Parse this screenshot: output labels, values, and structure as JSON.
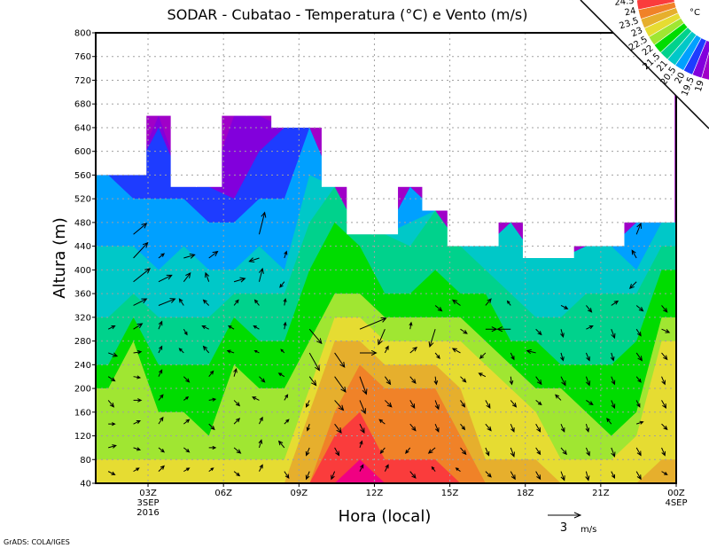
{
  "chart_data": {
    "type": "heatmap",
    "subtype": "filled-contour-with-wind-vectors",
    "title": "SODAR - Cubatao - Temperatura (°C) e Vento (m/s)",
    "xlabel": "Hora (local)",
    "ylabel": "Altura (m)",
    "xlim_hours": [
      0.92,
      24
    ],
    "ylim": [
      40,
      800
    ],
    "yticks": [
      40,
      80,
      120,
      160,
      200,
      240,
      280,
      320,
      360,
      400,
      440,
      480,
      520,
      560,
      600,
      640,
      680,
      720,
      760,
      800
    ],
    "xticks": [
      {
        "hour": 3,
        "label": "03Z",
        "date": "3SEP",
        "year": "2016"
      },
      {
        "hour": 6,
        "label": "06Z"
      },
      {
        "hour": 9,
        "label": "09Z"
      },
      {
        "hour": 12,
        "label": "12Z"
      },
      {
        "hour": 15,
        "label": "15Z"
      },
      {
        "hour": 18,
        "label": "18Z"
      },
      {
        "hour": 21,
        "label": "21Z"
      },
      {
        "hour": 24,
        "label": "00Z",
        "date": "4SEP"
      }
    ],
    "grid": true,
    "colorbar": {
      "unit": "°C",
      "levels": [
        19,
        19.5,
        20,
        20.5,
        21,
        21.5,
        22,
        22.5,
        23,
        23.5,
        24,
        24.5
      ],
      "level_labels": [
        "19",
        "19.5",
        "20",
        "20.5",
        "21",
        "21.5",
        "22",
        "22.5",
        "23",
        "23.5",
        "24",
        "24.5"
      ],
      "colors": [
        "#a000c8",
        "#8200dc",
        "#1e3cff",
        "#00a0ff",
        "#00c8c8",
        "#00d28c",
        "#00dc00",
        "#a0e632",
        "#e6dc32",
        "#e6af2d",
        "#f08228",
        "#fa3c3c",
        "#f00082"
      ],
      "placement": "top-right"
    },
    "profile_start_hour": 0.92,
    "profile_step_hours": 1,
    "profile_base_height_m": 60,
    "profile_step_m": 40,
    "ceiling_m": [
      560,
      560,
      660,
      540,
      540,
      660,
      660,
      640,
      640,
      540,
      460,
      460,
      540,
      500,
      440,
      440,
      480,
      420,
      420,
      440,
      440,
      480,
      480
    ],
    "temperature_profiles": [
      [
        22.75,
        22.25,
        22.25,
        22.25,
        21.75,
        21.25,
        21.25,
        20.75,
        20.75,
        20.75,
        20.25,
        20.25,
        20.25
      ],
      [
        22.75,
        22.25,
        22.25,
        22.25,
        22.25,
        22.25,
        21.75,
        21.25,
        20.75,
        20.75,
        20.25,
        20.25,
        19.75
      ],
      [
        22.75,
        22.25,
        22.25,
        21.75,
        21.75,
        21.25,
        21.25,
        20.75,
        20.75,
        20.25,
        20.25,
        20.25,
        19.75,
        19.75,
        19.75,
        19.25
      ],
      [
        22.75,
        22.25,
        22.25,
        21.75,
        21.75,
        21.25,
        21.25,
        20.75,
        20.75,
        20.75,
        20.25,
        20.25,
        19.75
      ],
      [
        22.75,
        22.25,
        21.75,
        21.75,
        21.75,
        21.25,
        21.25,
        20.75,
        20.75,
        20.25,
        20.25,
        19.75,
        19.75
      ],
      [
        22.75,
        22.25,
        22.25,
        22.25,
        22.25,
        21.75,
        21.75,
        21.25,
        20.75,
        20.25,
        20.25,
        19.75,
        19.25,
        19.25,
        19.25,
        19.25
      ],
      [
        22.75,
        22.25,
        22.25,
        22.25,
        21.75,
        21.75,
        21.25,
        21.25,
        20.75,
        20.75,
        20.25,
        20.25,
        19.75,
        19.75,
        19.25,
        19.25
      ],
      [
        22.75,
        22.25,
        22.25,
        22.25,
        21.75,
        21.75,
        21.25,
        21.25,
        20.75,
        20.25,
        20.25,
        20.25,
        19.75,
        19.75,
        19.75
      ],
      [
        23.25,
        23.25,
        23.25,
        22.75,
        22.25,
        22.25,
        21.75,
        21.75,
        21.75,
        21.25,
        21.25,
        20.75,
        20.75,
        20.25,
        20.25
      ],
      [
        24.25,
        24.25,
        23.75,
        23.25,
        23.25,
        23.25,
        22.75,
        22.25,
        21.75,
        21.75,
        21.75,
        21.25,
        21.25
      ],
      [
        24.75,
        24.25,
        24.25,
        23.75,
        23.75,
        23.25,
        22.75,
        22.25,
        21.75,
        21.75,
        21.25
      ],
      [
        24.25,
        23.75,
        23.75,
        23.75,
        23.25,
        22.75,
        22.25,
        21.75,
        21.25,
        21.25,
        21.25
      ],
      [
        24.25,
        23.75,
        23.75,
        23.75,
        23.25,
        22.75,
        22.25,
        21.75,
        21.25,
        21.25,
        20.75,
        20.25,
        20.25
      ],
      [
        24.25,
        23.75,
        23.75,
        23.75,
        23.25,
        22.75,
        22.25,
        21.75,
        21.75,
        21.25,
        21.25,
        21.25
      ],
      [
        23.75,
        23.75,
        23.25,
        23.25,
        22.75,
        22.75,
        22.25,
        21.75,
        21.25,
        21.25
      ],
      [
        23.25,
        22.75,
        22.75,
        22.75,
        22.75,
        22.25,
        21.75,
        21.75,
        21.25,
        20.75
      ],
      [
        23.25,
        22.75,
        22.75,
        22.75,
        22.25,
        21.75,
        21.25,
        21.25,
        20.75,
        20.75,
        20.75
      ],
      [
        23.25,
        22.75,
        22.75,
        22.25,
        21.75,
        21.75,
        21.25,
        20.75,
        20.75,
        20.75
      ],
      [
        22.75,
        22.25,
        22.25,
        22.25,
        21.75,
        21.25,
        21.25,
        20.75,
        20.75,
        20.75
      ],
      [
        22.75,
        22.25,
        22.25,
        21.75,
        21.75,
        21.25,
        21.25,
        21.25,
        20.75,
        20.75
      ],
      [
        22.75,
        22.25,
        21.75,
        21.75,
        21.75,
        21.25,
        21.25,
        21.25,
        20.75,
        20.75
      ],
      [
        22.75,
        22.75,
        22.25,
        21.75,
        21.75,
        21.75,
        21.25,
        21.25,
        20.75,
        20.25,
        20.25
      ],
      [
        23.25,
        22.75,
        22.75,
        22.75,
        22.75,
        22.75,
        22.25,
        21.75,
        21.75,
        21.25,
        20.75
      ]
    ],
    "wind_uv_ms": [
      [
        [
          0.6,
          -0.3
        ],
        [
          0.7,
          0.2
        ],
        [
          0.6,
          0
        ],
        [
          0.5,
          -0.6
        ],
        [
          0.6,
          -0.4
        ],
        [
          0.8,
          -0.3
        ],
        [
          0.6,
          0.3
        ]
      ],
      [
        [
          0.5,
          0.3
        ],
        [
          0.6,
          -0.2
        ],
        [
          0.6,
          0.3
        ],
        [
          0.7,
          0
        ],
        [
          0.6,
          -0.1
        ],
        [
          0.7,
          0.1
        ],
        [
          0.8,
          0.5
        ],
        [
          1.2,
          0.6
        ],
        [
          1.5,
          1.2
        ],
        [
          1.3,
          1.4
        ],
        [
          1.2,
          1.0
        ]
      ],
      [
        [
          0.5,
          0.5
        ],
        [
          0.5,
          -0.4
        ],
        [
          0.4,
          0.6
        ],
        [
          0.4,
          0.5
        ],
        [
          0.3,
          0.6
        ],
        [
          0.3,
          0.6
        ],
        [
          0.3,
          0.7
        ],
        [
          1.5,
          0.6
        ],
        [
          1.2,
          0.6
        ],
        [
          0.5,
          0.4
        ]
      ],
      [
        [
          0.5,
          0.3
        ],
        [
          0.5,
          -0.4
        ],
        [
          0.5,
          0.4
        ],
        [
          0.4,
          0.3
        ],
        [
          0.5,
          -0.5
        ],
        [
          -0.4,
          0.4
        ],
        [
          0.3,
          -0.5
        ],
        [
          -0.4,
          0.6
        ],
        [
          0.6,
          0.8
        ],
        [
          1.0,
          0.3
        ]
      ],
      [
        [
          0.4,
          0.3
        ],
        [
          0.6,
          0
        ],
        [
          0.5,
          -0.5
        ],
        [
          0.6,
          0.1
        ],
        [
          0.4,
          0.5
        ],
        [
          -0.5,
          0.6
        ],
        [
          -0.6,
          0.3
        ],
        [
          -0.5,
          0.5
        ],
        [
          -0.3,
          0.8
        ],
        [
          0.8,
          0.6
        ]
      ],
      [
        [
          0.5,
          -0.4
        ],
        [
          0.6,
          -0.5
        ],
        [
          0.5,
          0.5
        ],
        [
          0.5,
          -0.5
        ],
        [
          0.2,
          0.7
        ],
        [
          -0.6,
          0.2
        ],
        [
          -0.5,
          0.3
        ],
        [
          0.4,
          0.5
        ],
        [
          1.0,
          0.3
        ]
      ],
      [
        [
          0.3,
          0.6
        ],
        [
          0.2,
          0.7
        ],
        [
          0.3,
          0.6
        ],
        [
          -0.6,
          0.3
        ],
        [
          0.5,
          -0.5
        ],
        [
          -0.4,
          0.2
        ],
        [
          -0.5,
          0.3
        ],
        [
          -0.4,
          0.5
        ],
        [
          0.3,
          1.2
        ],
        [
          -0.9,
          -0.3
        ],
        [
          0.5,
          2.0
        ]
      ],
      [
        [
          0.4,
          -0.6
        ],
        [
          -0.5,
          0.6
        ],
        [
          0.4,
          0.4
        ],
        [
          0.3,
          0.5
        ],
        [
          -0.5,
          0.3
        ],
        [
          -0.3,
          0.3
        ],
        [
          0.1,
          0.6
        ],
        [
          0.1,
          0.6
        ],
        [
          -0.4,
          -0.5
        ],
        [
          0.2,
          0.6
        ]
      ],
      [
        [
          -0.3,
          -0.7
        ],
        [
          -0.3,
          -0.7
        ],
        [
          -0.2,
          -0.6
        ],
        [
          -0.3,
          -0.6
        ],
        [
          0.6,
          -0.8
        ],
        [
          0.9,
          -1.6
        ],
        [
          1.1,
          -1.3
        ]
      ],
      [
        [
          -0.3,
          -0.7
        ],
        [
          0.4,
          -0.7
        ],
        [
          0.6,
          -0.8
        ],
        [
          0.8,
          -0.9
        ],
        [
          1.0,
          -1.4
        ],
        [
          0.9,
          -1.3
        ]
      ],
      [
        [
          0.3,
          0.6
        ],
        [
          0.2,
          0.6
        ],
        [
          0.4,
          -0.8
        ],
        [
          0.5,
          -1.2
        ],
        [
          0.6,
          -1.6
        ],
        [
          1.5,
          0
        ],
        [
          2.4,
          1.0
        ]
      ],
      [
        [
          0.3,
          0.6
        ],
        [
          -0.4,
          -0.5
        ],
        [
          -0.5,
          0.4
        ],
        [
          0.6,
          -0.6
        ],
        [
          0.5,
          -0.7
        ],
        [
          0.3,
          0.6
        ],
        [
          -0.6,
          -1.4
        ]
      ],
      [
        [
          0.5,
          -0.6
        ],
        [
          -0.4,
          -0.5
        ],
        [
          0.5,
          -0.6
        ],
        [
          0.4,
          -0.7
        ],
        [
          0.5,
          -0.6
        ],
        [
          0.6,
          0.5
        ],
        [
          0.1,
          0.6
        ]
      ],
      [
        [
          -0.3,
          0.4
        ],
        [
          -0.6,
          -0.5
        ],
        [
          0.3,
          -0.7
        ],
        [
          0.3,
          -0.8
        ],
        [
          0.1,
          -0.7
        ],
        [
          0.4,
          -0.5
        ],
        [
          -0.5,
          -1.6
        ],
        [
          0.6,
          -0.5
        ]
      ],
      [
        [
          -0.4,
          0.3
        ],
        [
          0.5,
          -0.6
        ],
        [
          0.4,
          -0.5
        ],
        [
          0.4,
          -0.6
        ],
        [
          0.5,
          -0.5
        ],
        [
          -0.7,
          0.4
        ],
        [
          0.6,
          -0.4
        ],
        [
          -0.7,
          0.5
        ]
      ],
      [
        [
          0.5,
          -0.5
        ],
        [
          0.3,
          -0.7
        ],
        [
          0.5,
          -0.6
        ],
        [
          0.4,
          -0.7
        ],
        [
          -0.6,
          0.3
        ],
        [
          -0.5,
          -0.5
        ],
        [
          1.0,
          0
        ],
        [
          0.5,
          0.6
        ]
      ],
      [
        [
          0.4,
          -0.7
        ],
        [
          0.3,
          -0.8
        ],
        [
          0.3,
          -0.7
        ],
        [
          0.5,
          -0.6
        ],
        [
          0.1,
          -0.7
        ],
        [
          0.3,
          -0.6
        ],
        [
          -1.2,
          0
        ],
        [
          -0.3,
          0.4
        ]
      ],
      [
        [
          0.4,
          -0.7
        ],
        [
          0.4,
          -0.6
        ],
        [
          0.4,
          -0.7
        ],
        [
          0.5,
          -0.4
        ],
        [
          0.5,
          -0.7
        ],
        [
          -0.8,
          0.2
        ],
        [
          0.5,
          -0.5
        ]
      ],
      [
        [
          0.3,
          -0.8
        ],
        [
          0.5,
          -0.6
        ],
        [
          0.3,
          -0.7
        ],
        [
          -0.5,
          0.5
        ],
        [
          0.4,
          -0.8
        ],
        [
          0.2,
          -0.7
        ],
        [
          0.2,
          -0.7
        ],
        [
          0.6,
          -0.3
        ]
      ],
      [
        [
          0.2,
          -0.8
        ],
        [
          0.3,
          -0.7
        ],
        [
          0.2,
          -0.7
        ],
        [
          0.6,
          -0.4
        ],
        [
          0.3,
          -0.8
        ],
        [
          0.3,
          -0.7
        ],
        [
          0.6,
          0.3
        ],
        [
          0.5,
          -0.6
        ]
      ],
      [
        [
          0.3,
          -0.6
        ],
        [
          0.3,
          -0.8
        ],
        [
          -0.4,
          0.5
        ],
        [
          0.3,
          -0.7
        ],
        [
          0.3,
          -0.7
        ],
        [
          0.2,
          -0.7
        ],
        [
          0.3,
          -0.8
        ],
        [
          0.6,
          0.4
        ]
      ],
      [
        [
          0.4,
          -0.7
        ],
        [
          0.4,
          -0.7
        ],
        [
          0.6,
          0.2
        ],
        [
          0.3,
          -0.6
        ],
        [
          0.4,
          -0.5
        ],
        [
          0.5,
          -0.7
        ],
        [
          0.4,
          -0.6
        ],
        [
          0.6,
          -0.5
        ],
        [
          -0.6,
          -0.6
        ],
        [
          -0.4,
          0.7
        ],
        [
          0.4,
          1.0
        ]
      ],
      [
        [
          0.5,
          -0.3
        ],
        [
          0.3,
          -0.7
        ],
        [
          0.5,
          -0.5
        ],
        [
          0.4,
          -0.7
        ],
        [
          0.3,
          -0.7
        ],
        [
          0.5,
          -0.6
        ],
        [
          0.7,
          -0.3
        ],
        [
          0.5,
          -0.6
        ]
      ]
    ],
    "reference_vector": {
      "value": 3,
      "value_label": "3",
      "unit": "m/s"
    }
  },
  "footer": {
    "credit": "GrADS: COLA/IGES"
  }
}
